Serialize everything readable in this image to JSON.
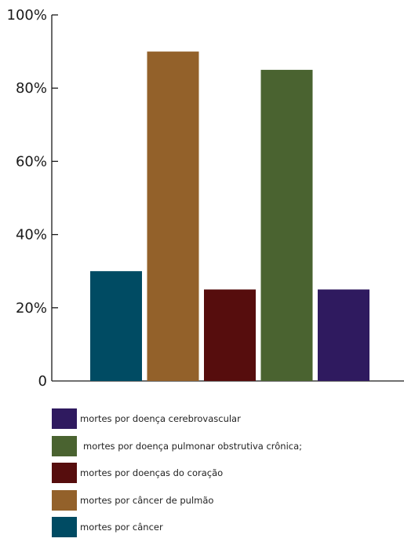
{
  "chart_data": {
    "type": "bar",
    "title": "",
    "xlabel": "",
    "ylabel": "",
    "ylim": [
      0,
      100
    ],
    "y_ticks": [
      {
        "value": 0,
        "label": "0"
      },
      {
        "value": 20,
        "label": "20%"
      },
      {
        "value": 40,
        "label": "40%"
      },
      {
        "value": 60,
        "label": "60%"
      },
      {
        "value": 80,
        "label": "80%"
      },
      {
        "value": 100,
        "label": "100%"
      }
    ],
    "grid": false,
    "legend_position": "bottom",
    "series": [
      {
        "name": "mortes por câncer",
        "value": 30,
        "color": "#004b63"
      },
      {
        "name": "mortes por câncer de pulmão",
        "value": 90,
        "color": "#93612a"
      },
      {
        "name": "mortes por doenças do coração",
        "value": 25,
        "color": "#560d0d"
      },
      {
        "name": "mortes por doença pulmonar obstrutiva crônica;",
        "value": 85,
        "color": "#4a6330"
      },
      {
        "name": "mortes por doença cerebrovascular",
        "value": 25,
        "color": "#2f1a5f"
      }
    ],
    "legend_order": [
      4,
      3,
      2,
      1,
      0
    ]
  }
}
